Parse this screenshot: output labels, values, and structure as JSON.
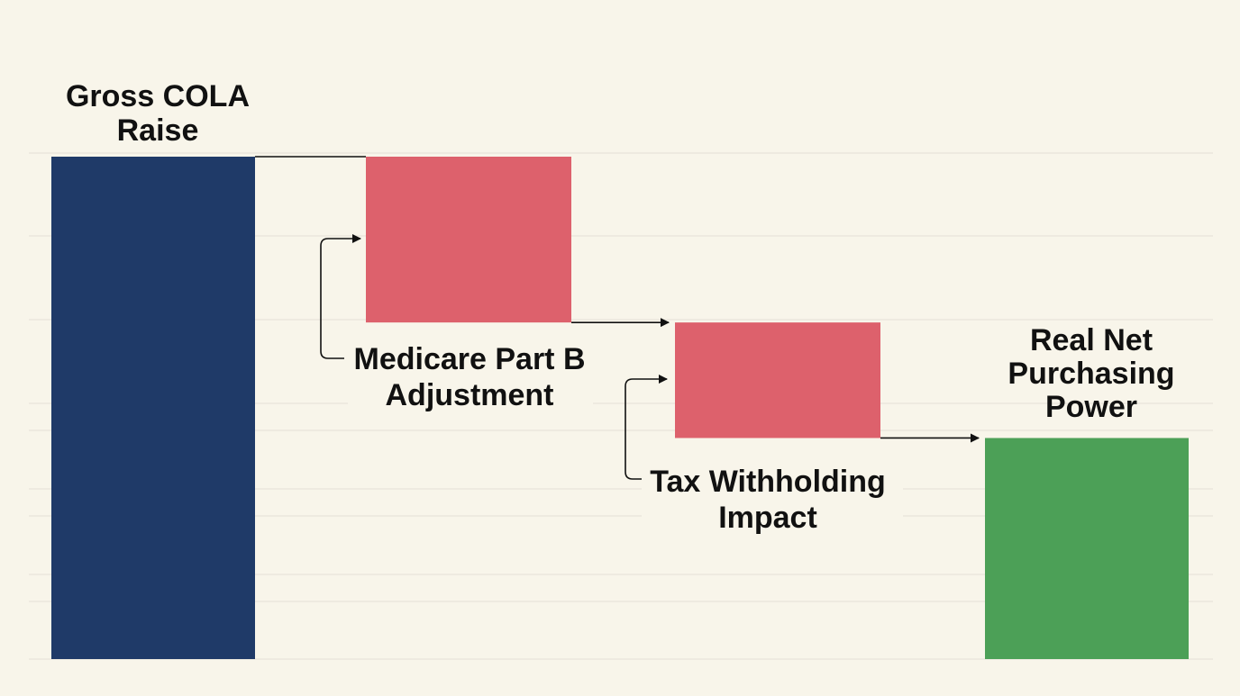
{
  "chart_data": {
    "type": "bar",
    "subtype": "waterfall",
    "title": "",
    "xlabel": "",
    "ylabel": "",
    "ylim": [
      0,
      100
    ],
    "grid": true,
    "legend": "none",
    "categories": [
      "Gross COLA Raise",
      "Medicare Part B Adjustment",
      "Tax Withholding Impact",
      "Real Net Purchasing Power"
    ],
    "steps": [
      {
        "label": "Gross COLA Raise",
        "kind": "total",
        "start": 0,
        "end": 100
      },
      {
        "label": "Medicare Part B Adjustment",
        "kind": "decrease",
        "start": 100,
        "end": 67
      },
      {
        "label": "Tax Withholding Impact",
        "kind": "decrease",
        "start": 67,
        "end": 44
      },
      {
        "label": "Real Net Purchasing Power",
        "kind": "total",
        "start": 0,
        "end": 44
      }
    ],
    "colors": {
      "total_start": "#1f3a68",
      "decrease": "#dd616c",
      "total_end": "#4ca057",
      "gridline": "#e3e0d6",
      "connector": "#111111",
      "background": "#f8f5ea"
    }
  }
}
